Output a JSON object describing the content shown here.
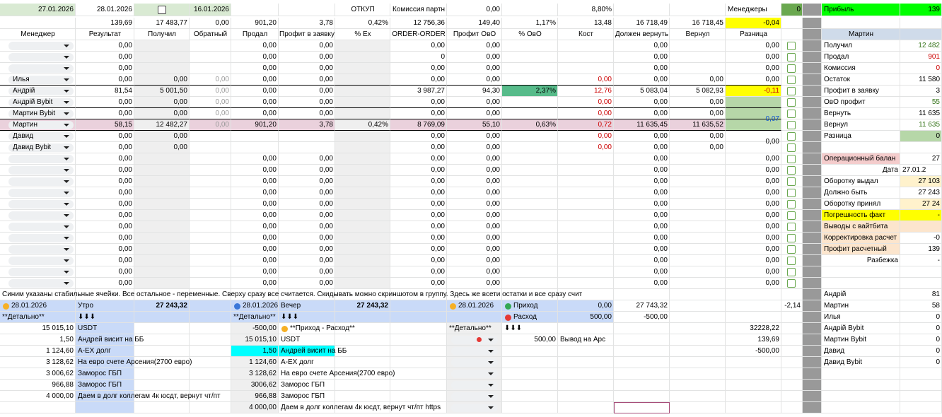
{
  "rows": [
    [
      "27.01.2026",
      "28.01.2026",
      null,
      "16.01.2026",
      null,
      null,
      "ОТКУП",
      "Комиссия партн",
      "0,00",
      null,
      "8,80%",
      null,
      null,
      "Менеджеры",
      "0",
      null,
      "Прибыль",
      "139"
    ],
    [
      null,
      "139,69",
      "17 483,77",
      "0,00",
      "901,20",
      "3,78",
      "0,42%",
      "12 756,36",
      "149,40",
      "1,17%",
      "13,48",
      "16 718,49",
      "16 718,45",
      "-0,04",
      null,
      null,
      null,
      null
    ],
    [
      "Менеджер",
      "Результат",
      "Получил",
      "Обратный",
      "Продал",
      "Профит в заявку",
      "% Ex",
      "ORDER-ORDER",
      "Профит ОвО",
      "% ОвО",
      "Кост",
      "Должен вернуть",
      "Вернул",
      "Разница",
      null,
      null,
      "Мартин",
      null
    ],
    [
      null,
      "0,00",
      null,
      null,
      "0,00",
      "0,00",
      null,
      "0,00",
      "0,00",
      null,
      null,
      "0,00",
      null,
      "0,00",
      null,
      null,
      "Получил",
      "12 482"
    ],
    [
      null,
      "0,00",
      null,
      null,
      "0,00",
      "0,00",
      null,
      "0",
      "0,00",
      null,
      null,
      "0,00",
      null,
      "0,00",
      null,
      null,
      "Продал",
      "901"
    ],
    [
      null,
      "0,00",
      null,
      null,
      "0,00",
      "0,00",
      null,
      "0,00",
      "0,00",
      null,
      null,
      "0,00",
      null,
      "0,00",
      null,
      null,
      "Комиссия",
      "0"
    ],
    [
      "Илья",
      "0,00",
      "0,00",
      "0,00",
      "0,00",
      "0,00",
      null,
      "0,00",
      "0,00",
      null,
      "0,00",
      "0,00",
      "0,00",
      "0,00",
      null,
      null,
      "Остаток",
      "11 580"
    ],
    [
      "Андрій",
      "81,54",
      "5 001,50",
      "0,00",
      "0,00",
      "0,00",
      null,
      "3 987,27",
      "94,30",
      "2,37%",
      "12,76",
      "5 083,04",
      "5 082,93",
      "-0,11",
      null,
      null,
      "Профит в заявку",
      "3"
    ],
    [
      "Андрій Bybit",
      "0,00",
      "0,00",
      "0,00",
      "0,00",
      "0,00",
      null,
      "0,00",
      "0,00",
      null,
      "0,00",
      "0,00",
      "0,00",
      null,
      null,
      null,
      "ОвО профит",
      "55"
    ],
    [
      "Мартин Bybit",
      "0,00",
      "0,00",
      "0,00",
      "0,00",
      "0,00",
      null,
      "0,00",
      "0,00",
      null,
      "0,00",
      "0,00",
      "0,00",
      "0,07",
      null,
      null,
      "Вернуть",
      "11 635"
    ],
    [
      "Мартин",
      "58,15",
      "12 482,27",
      "0,00",
      "901,20",
      "3,78",
      "0,42%",
      "8 769,09",
      "55,10",
      "0,63%",
      "0,72",
      "11 635,45",
      "11 635,52",
      null,
      null,
      null,
      "Вернул",
      "11 635"
    ],
    [
      "Давид",
      "0,00",
      "0,00",
      null,
      null,
      null,
      null,
      "0,00",
      "0,00",
      null,
      "0,00",
      "0,00",
      "0,00",
      "0,00",
      null,
      null,
      "Разница",
      "0"
    ],
    [
      "Давид Bybit",
      "0,00",
      "0,00",
      null,
      null,
      null,
      null,
      "0,00",
      "0,00",
      null,
      "0,00",
      "0,00",
      "0,00",
      null,
      null,
      null,
      null,
      null
    ],
    [
      null,
      "0,00",
      null,
      null,
      "0,00",
      "0,00",
      null,
      "0,00",
      "0,00",
      null,
      null,
      "0,00",
      null,
      "0,00",
      null,
      null,
      "Операционный балан",
      "27"
    ],
    [
      null,
      "0,00",
      null,
      null,
      "0,00",
      "0,00",
      null,
      "0,00",
      "0,00",
      null,
      null,
      "0,00",
      null,
      "0,00",
      null,
      null,
      "Дата",
      "27.01.2"
    ],
    [
      null,
      "0,00",
      null,
      null,
      "0,00",
      "0,00",
      null,
      "0,00",
      "0,00",
      null,
      null,
      "0,00",
      null,
      "0,00",
      null,
      null,
      "Оборотку выдал",
      "27 103"
    ],
    [
      null,
      "0,00",
      null,
      null,
      "0,00",
      "0,00",
      null,
      "0,00",
      "0,00",
      null,
      null,
      "0,00",
      null,
      "0,00",
      null,
      null,
      "Должно быть",
      "27 243"
    ],
    [
      null,
      "0,00",
      null,
      null,
      "0,00",
      "0,00",
      null,
      "0,00",
      "0,00",
      null,
      null,
      "0,00",
      null,
      "0,00",
      null,
      null,
      "Оборотку принял",
      "27 24"
    ],
    [
      null,
      "0,00",
      null,
      null,
      "0,00",
      "0,00",
      null,
      "0,00",
      "0,00",
      null,
      null,
      "0,00",
      null,
      "0,00",
      null,
      null,
      "Погрешность факт",
      "-"
    ],
    [
      null,
      "0,00",
      null,
      null,
      "0,00",
      "0,00",
      null,
      "0,00",
      "0,00",
      null,
      null,
      "0,00",
      null,
      "0,00",
      null,
      null,
      "Выводы с вайтбита",
      null
    ],
    [
      null,
      "0,00",
      null,
      null,
      "0,00",
      "0,00",
      null,
      "0,00",
      "0,00",
      null,
      null,
      "0,00",
      null,
      "0,00",
      null,
      null,
      "Корректировка расчет",
      "-0"
    ],
    [
      null,
      "0,00",
      null,
      null,
      "0,00",
      "0,00",
      null,
      "0,00",
      "0,00",
      null,
      null,
      "0,00",
      null,
      "0,00",
      null,
      null,
      "Профит расчетный",
      "139"
    ],
    [
      null,
      "0,00",
      null,
      null,
      "0,00",
      "0,00",
      null,
      "0,00",
      "0,00",
      null,
      null,
      "0,00",
      null,
      "0,00",
      null,
      null,
      "Разбежка",
      "-"
    ],
    [
      null,
      "0,00",
      null,
      null,
      "0,00",
      "0,00",
      null,
      "0,00",
      "0,00",
      null,
      null,
      "0,00",
      null,
      "0,00",
      null,
      null,
      null,
      null
    ],
    [
      null,
      "0,00",
      null,
      null,
      "0,00",
      "0,00",
      null,
      "0,00",
      "0,00",
      null,
      null,
      "0,00",
      null,
      "0,00",
      null,
      null,
      null,
      null
    ],
    [
      "Синим указаны стабильные ячейки. Все остальное - переменные. Сверху сразу все считается. Скидывать можно скриншотом в группу. Здесь же всети остатки и все сразу счит",
      null,
      null,
      null,
      null,
      null,
      null,
      null,
      null,
      null,
      null,
      null,
      null,
      null,
      null,
      null,
      "Андрій",
      "81"
    ],
    [
      "28.01.2026",
      "Утро",
      "27 243,32",
      null,
      "28.01.2026",
      "Вечер",
      "27 243,32",
      null,
      "28.01.2026",
      "Приход",
      "0,00",
      "27 743,32",
      null,
      null,
      "-2,14",
      null,
      "Мартин",
      "58"
    ],
    [
      "**Детально**",
      "⬇⬇⬇",
      null,
      null,
      "**Детально**",
      "⬇⬇⬇",
      null,
      null,
      null,
      "Расход",
      "500,00",
      "-500,00",
      null,
      null,
      null,
      null,
      "Илья",
      "0"
    ],
    [
      "15 015,10",
      "USDT",
      null,
      null,
      "-500,00",
      "**Приход - Расход**",
      null,
      null,
      "**Детально**",
      "⬇⬇⬇",
      null,
      null,
      null,
      "32228,22",
      null,
      null,
      "Андрій Bybit",
      "0"
    ],
    [
      "1,50",
      "Андрей висит на ББ",
      null,
      null,
      "15 015,10",
      "USDT",
      null,
      null,
      null,
      "500,00",
      "Вывод на Арс",
      null,
      null,
      "139,69",
      null,
      null,
      "Мартин Bybit",
      "0"
    ],
    [
      "1 124,60",
      "A-EX долг",
      null,
      null,
      "1,50",
      "Андрей висит на ББ",
      null,
      null,
      null,
      null,
      null,
      null,
      null,
      "-500,00",
      null,
      null,
      "Давид",
      "0"
    ],
    [
      "3 128,62",
      "На евро счете Арсения(2700 евро)",
      null,
      null,
      "1 124,60",
      "A-EX долг",
      null,
      null,
      null,
      null,
      null,
      null,
      null,
      null,
      null,
      null,
      "Давид Bybit",
      "0"
    ],
    [
      "3 006,62",
      "Заморос ГБП",
      null,
      null,
      "3 128,62",
      "На евро счете Арсения(2700 евро)",
      null,
      null,
      null,
      null,
      null,
      null,
      null,
      null,
      null,
      null,
      null,
      null
    ],
    [
      "966,88",
      "Заморос ГБП",
      null,
      null,
      "3006,62",
      "Заморос ГБП",
      null,
      null,
      null,
      null,
      null,
      null,
      null,
      null,
      null,
      null,
      null,
      null
    ],
    [
      "4 000,00",
      "Даем в долг коллегам 4к юсдт, вернут чт/пт",
      null,
      null,
      "966,88",
      "Заморос ГБП",
      null,
      null,
      null,
      null,
      null,
      null,
      null,
      null,
      null,
      null,
      null,
      null
    ],
    [
      null,
      null,
      null,
      null,
      "4 000,00",
      "Даем в долг коллегам 4к юсдт, вернут чт/пт https",
      null,
      null,
      null,
      null,
      null,
      null,
      null,
      null,
      null,
      null,
      null,
      null
    ]
  ]
}
